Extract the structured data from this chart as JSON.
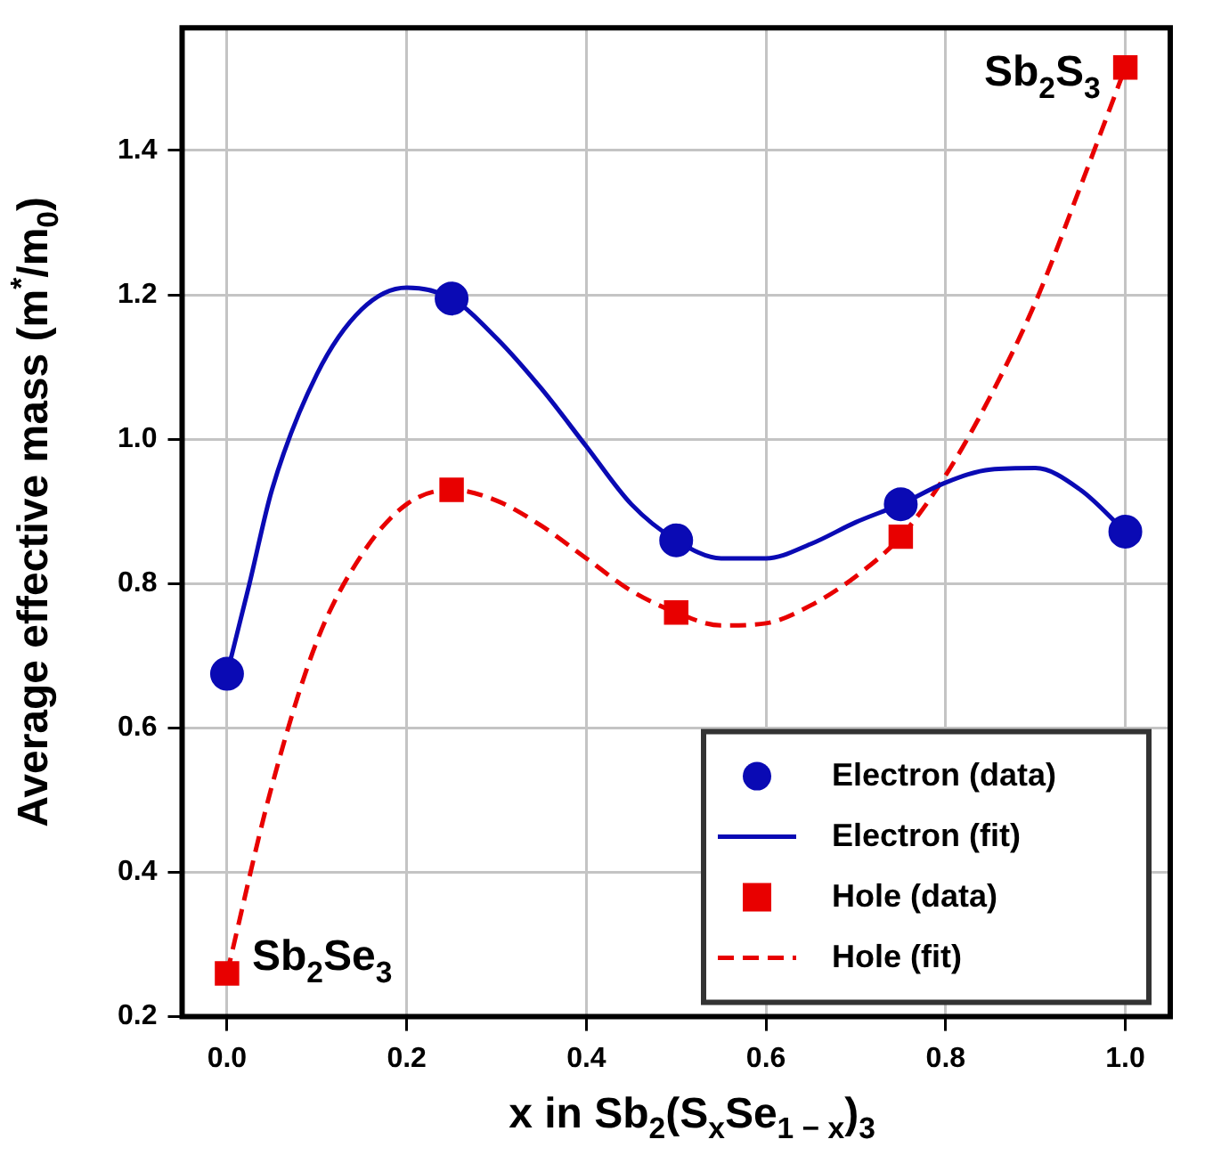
{
  "chart_data": {
    "type": "scatter",
    "xlabel": "x in Sb$_{2}$(S$_{x}$Se$_{1 − x}$)$_{3}$",
    "ylabel": "Average effective mass (m$^{*}$/m$_{0}$)",
    "xlim": [
      -0.05,
      1.05
    ],
    "ylim": [
      0.2,
      1.57
    ],
    "xticks": [
      {
        "value": 0,
        "label": "0.0"
      },
      0.2,
      0.4,
      0.6,
      0.8,
      {
        "value": 1,
        "label": "1.0"
      }
    ],
    "yticks": [
      0.2,
      0.4,
      0.6,
      0.8,
      {
        "value": 1,
        "label": "1.0"
      },
      1.2,
      1.4
    ],
    "grid": true,
    "legend": "bottom right",
    "annotations": [
      {
        "text": "Sb$_{2}$Se$_{3}$",
        "x": 0,
        "y": 0.26
      },
      {
        "text": "Sb$_{2}$S$_{3}$",
        "x": 1,
        "y": 1.515
      }
    ],
    "series": [
      {
        "name": "Electron (data)",
        "marker": "circle",
        "color": "#0a0ab4",
        "x": [
          0,
          0.25,
          0.5,
          0.75,
          1
        ],
        "values": [
          0.675,
          1.195,
          0.86,
          0.91,
          0.872
        ]
      },
      {
        "name": "Electron (fit)",
        "type": "line",
        "line_style": "solid",
        "marker": "none",
        "color": "#0a0ab4",
        "x": [
          0,
          0.025,
          0.05,
          0.1,
          0.15,
          0.2,
          0.25,
          0.3,
          0.35,
          0.4,
          0.45,
          0.5,
          0.55,
          0.6,
          0.65,
          0.7,
          0.75,
          0.8,
          0.85,
          0.9,
          0.95,
          1
        ],
        "values": [
          0.675,
          0.8,
          0.93,
          1.09,
          1.18,
          1.21,
          1.195,
          1.14,
          1.07,
          0.99,
          0.91,
          0.86,
          0.835,
          0.835,
          0.855,
          0.885,
          0.91,
          0.94,
          0.958,
          0.96,
          0.93,
          0.872
        ]
      },
      {
        "name": "Hole (data)",
        "marker": "square",
        "color": "#e80000",
        "x": [
          0,
          0.25,
          0.5,
          0.75,
          1
        ],
        "values": [
          0.26,
          0.93,
          0.76,
          0.865,
          1.515
        ]
      },
      {
        "name": "Hole (fit)",
        "type": "line",
        "line_style": "dashed",
        "marker": "none",
        "color": "#e80000",
        "x": [
          0,
          0.05,
          0.1,
          0.15,
          0.2,
          0.25,
          0.3,
          0.35,
          0.4,
          0.45,
          0.5,
          0.55,
          0.6,
          0.65,
          0.7,
          0.75,
          0.8,
          0.85,
          0.9,
          0.95,
          1
        ],
        "values": [
          0.26,
          0.52,
          0.72,
          0.84,
          0.91,
          0.93,
          0.915,
          0.88,
          0.835,
          0.79,
          0.76,
          0.742,
          0.745,
          0.77,
          0.81,
          0.865,
          0.95,
          1.06,
          1.19,
          1.35,
          1.515
        ]
      }
    ]
  }
}
